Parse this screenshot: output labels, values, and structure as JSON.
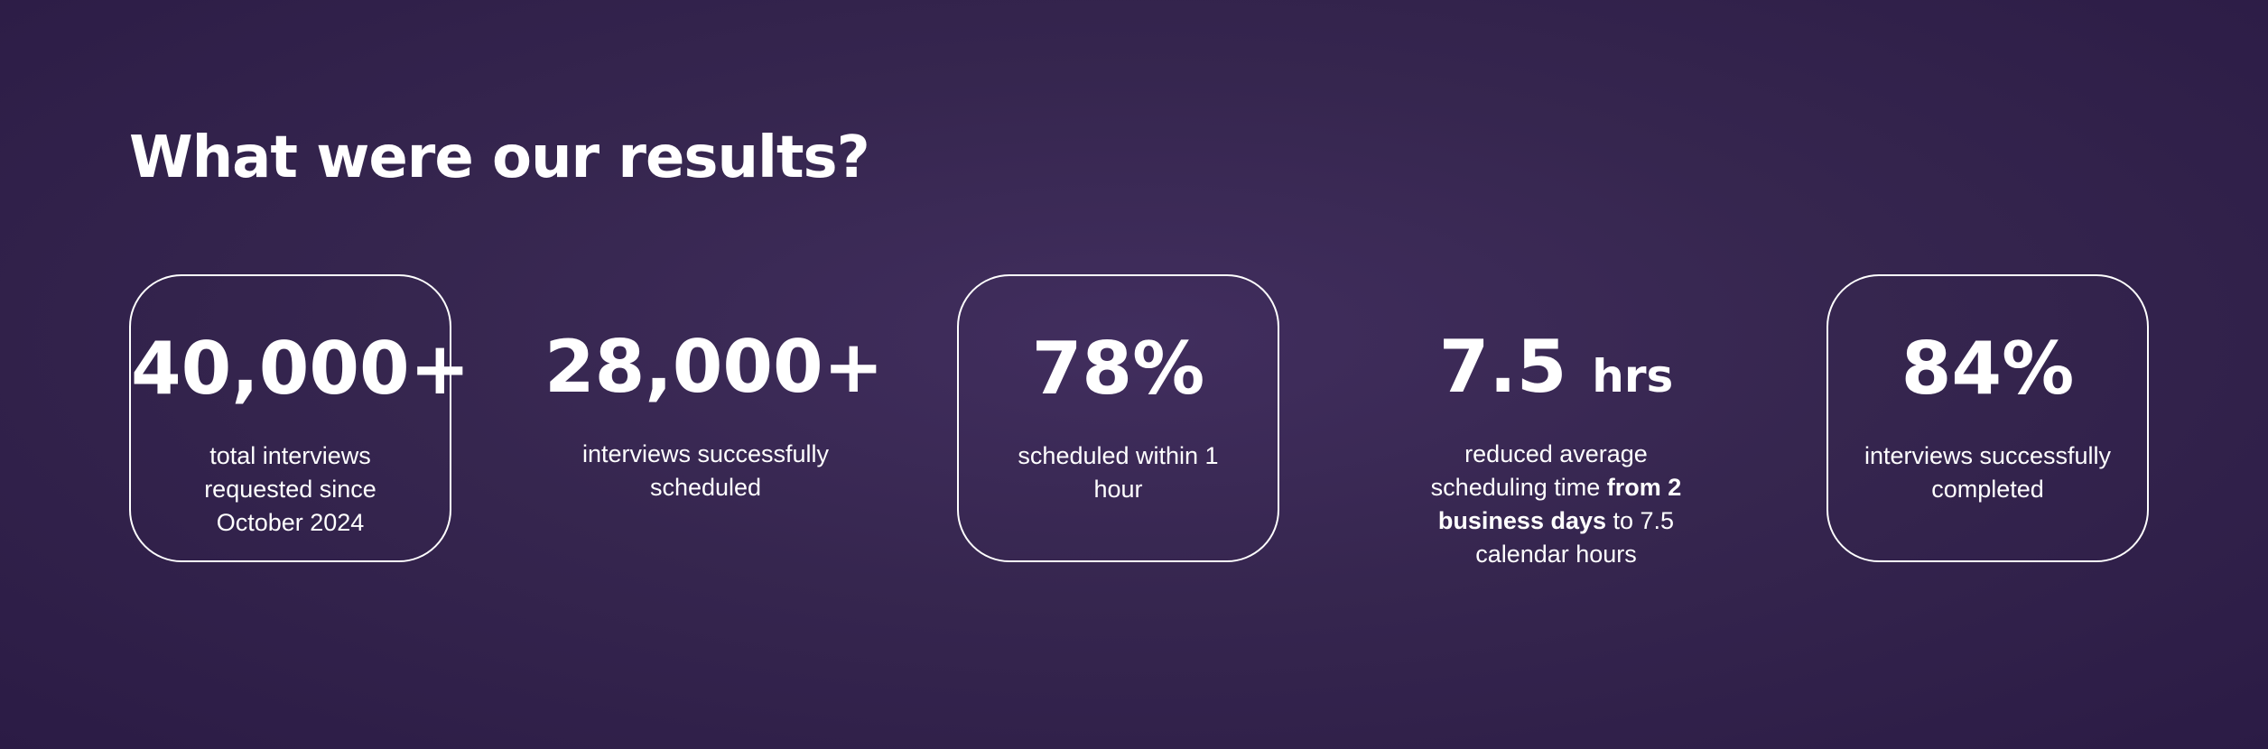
{
  "title": "What were our results?",
  "stats": [
    {
      "value": "40,000+",
      "description": [
        {
          "text": "total interviews requested since October 2024",
          "bold": false
        }
      ],
      "boxed": true
    },
    {
      "value": "28,000+",
      "description": [
        {
          "text": "interviews successfully scheduled",
          "bold": false
        }
      ],
      "boxed": false
    },
    {
      "value": "78%",
      "description": [
        {
          "text": "scheduled within 1 hour",
          "bold": false
        }
      ],
      "boxed": true
    },
    {
      "value": "7.5",
      "unit": "hrs",
      "description": [
        {
          "text": "reduced average scheduling time ",
          "bold": false
        },
        {
          "text": "from 2 business days",
          "bold": true
        },
        {
          "text": " to 7.5 calendar hours",
          "bold": false
        }
      ],
      "boxed": false
    },
    {
      "value": "84%",
      "description": [
        {
          "text": "interviews successfully completed",
          "bold": false
        }
      ],
      "boxed": true
    }
  ]
}
